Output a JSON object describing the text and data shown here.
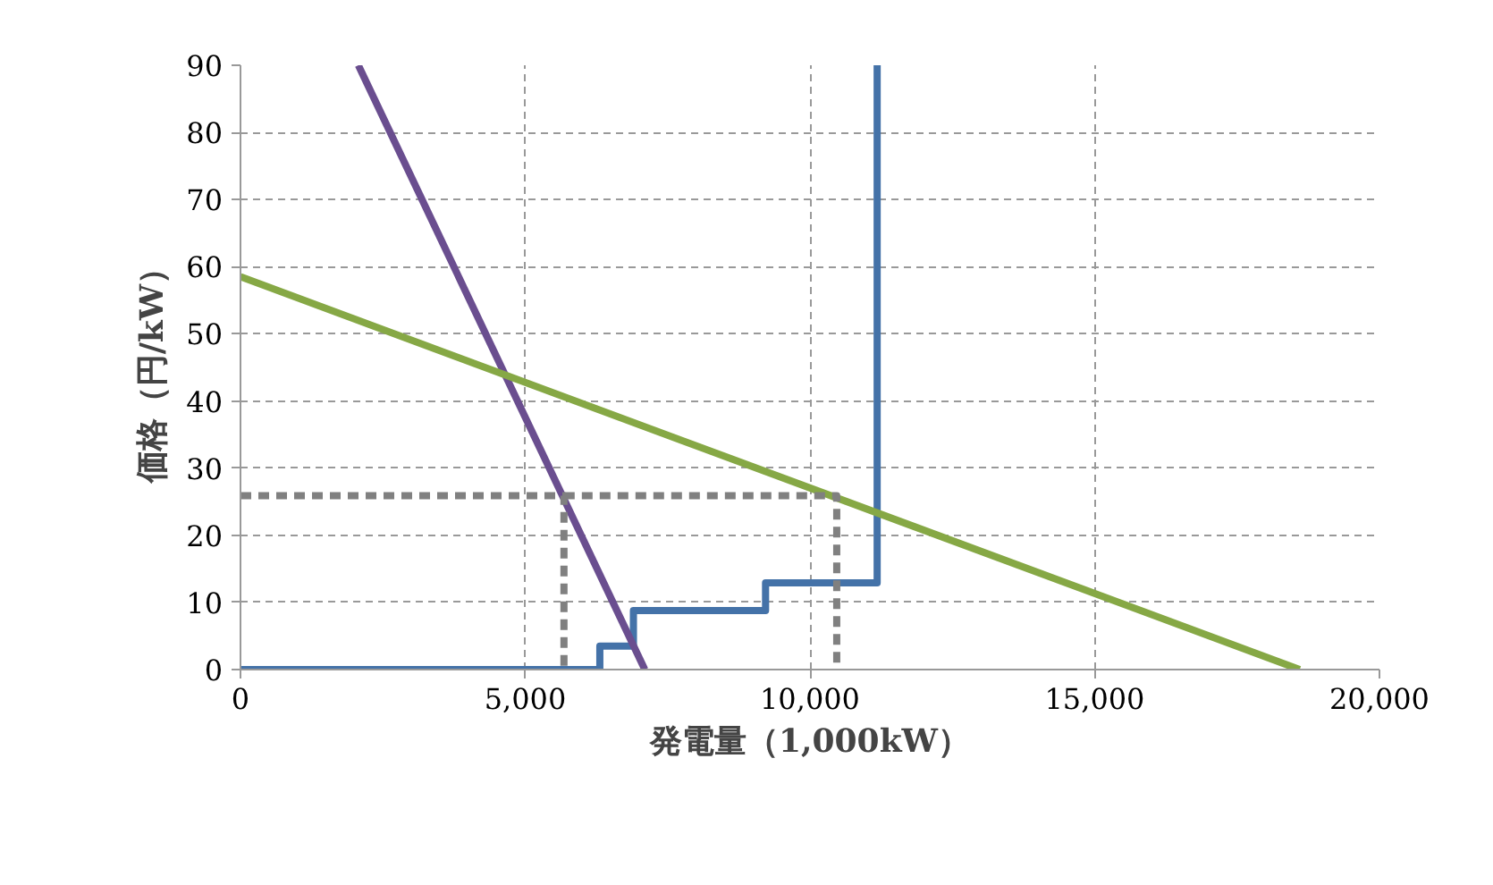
{
  "chart_data": {
    "type": "line",
    "xlabel": "発電量（1,000kW）",
    "ylabel": "価格（円/kW）",
    "xlim": [
      0,
      20000
    ],
    "xticks": [
      {
        "value": 0,
        "label": "0"
      },
      {
        "value": 5000,
        "label": "5,000"
      },
      {
        "value": 10000,
        "label": "10,000"
      },
      {
        "value": 15000,
        "label": "15,000"
      },
      {
        "value": 20000,
        "label": "20,000"
      }
    ],
    "ylim": [
      0,
      90
    ],
    "yticks": [
      0,
      10,
      20,
      30,
      40,
      50,
      60,
      70,
      80,
      90
    ],
    "grid": true,
    "marker": "none",
    "series": [
      {
        "type": "step",
        "color": "#4472a8",
        "x": [
          0,
          6310,
          6310,
          6900,
          6900,
          9220,
          9220,
          11180,
          11180
        ],
        "values": [
          0,
          0,
          3.5,
          3.5,
          8.8,
          8.8,
          12.9,
          12.9,
          90
        ]
      },
      {
        "color": "#6a4e8f",
        "x": [
          2070,
          7100
        ],
        "values": [
          90,
          0
        ]
      },
      {
        "color": "#86a845",
        "x": [
          0,
          18600
        ],
        "values": [
          58.5,
          0
        ]
      },
      {
        "color": "#808080",
        "line_style": "dashed",
        "x": [
          0,
          5680,
          5680
        ],
        "values": [
          25.9,
          25.9,
          0
        ]
      },
      {
        "color": "#808080",
        "line_style": "dashed",
        "x": [
          5680,
          10470,
          10470
        ],
        "values": [
          25.9,
          25.9,
          0
        ]
      }
    ]
  }
}
